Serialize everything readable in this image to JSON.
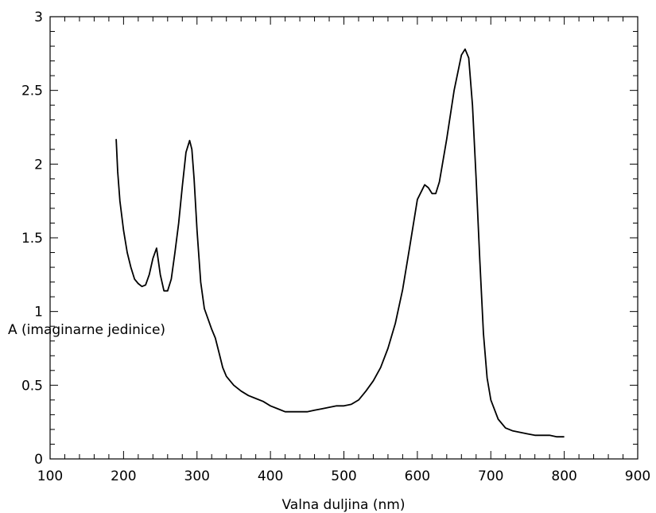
{
  "chart_data": {
    "type": "line",
    "title": "",
    "xlabel": "Valna duljina (nm)",
    "ylabel": "A (imaginarne jedinice)",
    "xlim": [
      100,
      900
    ],
    "ylim": [
      0,
      3
    ],
    "grid": false,
    "x_ticks": [
      "100",
      "200",
      "300",
      "400",
      "500",
      "600",
      "700",
      "800",
      "900"
    ],
    "y_ticks": [
      "0",
      "0.5",
      "1",
      "1.5",
      "2",
      "2.5",
      "3"
    ],
    "series": [
      {
        "x": [
          190,
          192,
          195,
          200,
          205,
          210,
          215,
          220,
          225,
          230,
          235,
          240,
          245,
          250,
          255,
          260,
          265,
          270,
          275,
          280,
          285,
          290,
          293,
          296,
          300,
          305,
          310,
          315,
          320,
          325,
          330,
          335,
          340,
          350,
          360,
          370,
          380,
          390,
          400,
          410,
          420,
          430,
          440,
          450,
          460,
          470,
          480,
          490,
          500,
          510,
          520,
          530,
          540,
          550,
          560,
          570,
          580,
          590,
          600,
          610,
          615,
          620,
          625,
          630,
          640,
          650,
          660,
          665,
          670,
          675,
          680,
          685,
          690,
          695,
          700,
          710,
          720,
          730,
          740,
          750,
          760,
          770,
          780,
          790,
          800
        ],
        "y": [
          2.17,
          1.95,
          1.75,
          1.55,
          1.4,
          1.3,
          1.22,
          1.19,
          1.17,
          1.18,
          1.25,
          1.36,
          1.43,
          1.25,
          1.14,
          1.14,
          1.22,
          1.4,
          1.6,
          1.85,
          2.08,
          2.16,
          2.1,
          1.9,
          1.55,
          1.2,
          1.02,
          0.95,
          0.88,
          0.82,
          0.72,
          0.62,
          0.56,
          0.5,
          0.46,
          0.43,
          0.41,
          0.39,
          0.36,
          0.34,
          0.32,
          0.32,
          0.32,
          0.32,
          0.33,
          0.34,
          0.35,
          0.36,
          0.36,
          0.37,
          0.4,
          0.46,
          0.53,
          0.62,
          0.75,
          0.92,
          1.15,
          1.45,
          1.76,
          1.86,
          1.84,
          1.8,
          1.8,
          1.88,
          2.17,
          2.5,
          2.74,
          2.78,
          2.72,
          2.4,
          1.9,
          1.35,
          0.85,
          0.55,
          0.4,
          0.27,
          0.21,
          0.19,
          0.18,
          0.17,
          0.16,
          0.16,
          0.16,
          0.15,
          0.15
        ]
      }
    ]
  }
}
